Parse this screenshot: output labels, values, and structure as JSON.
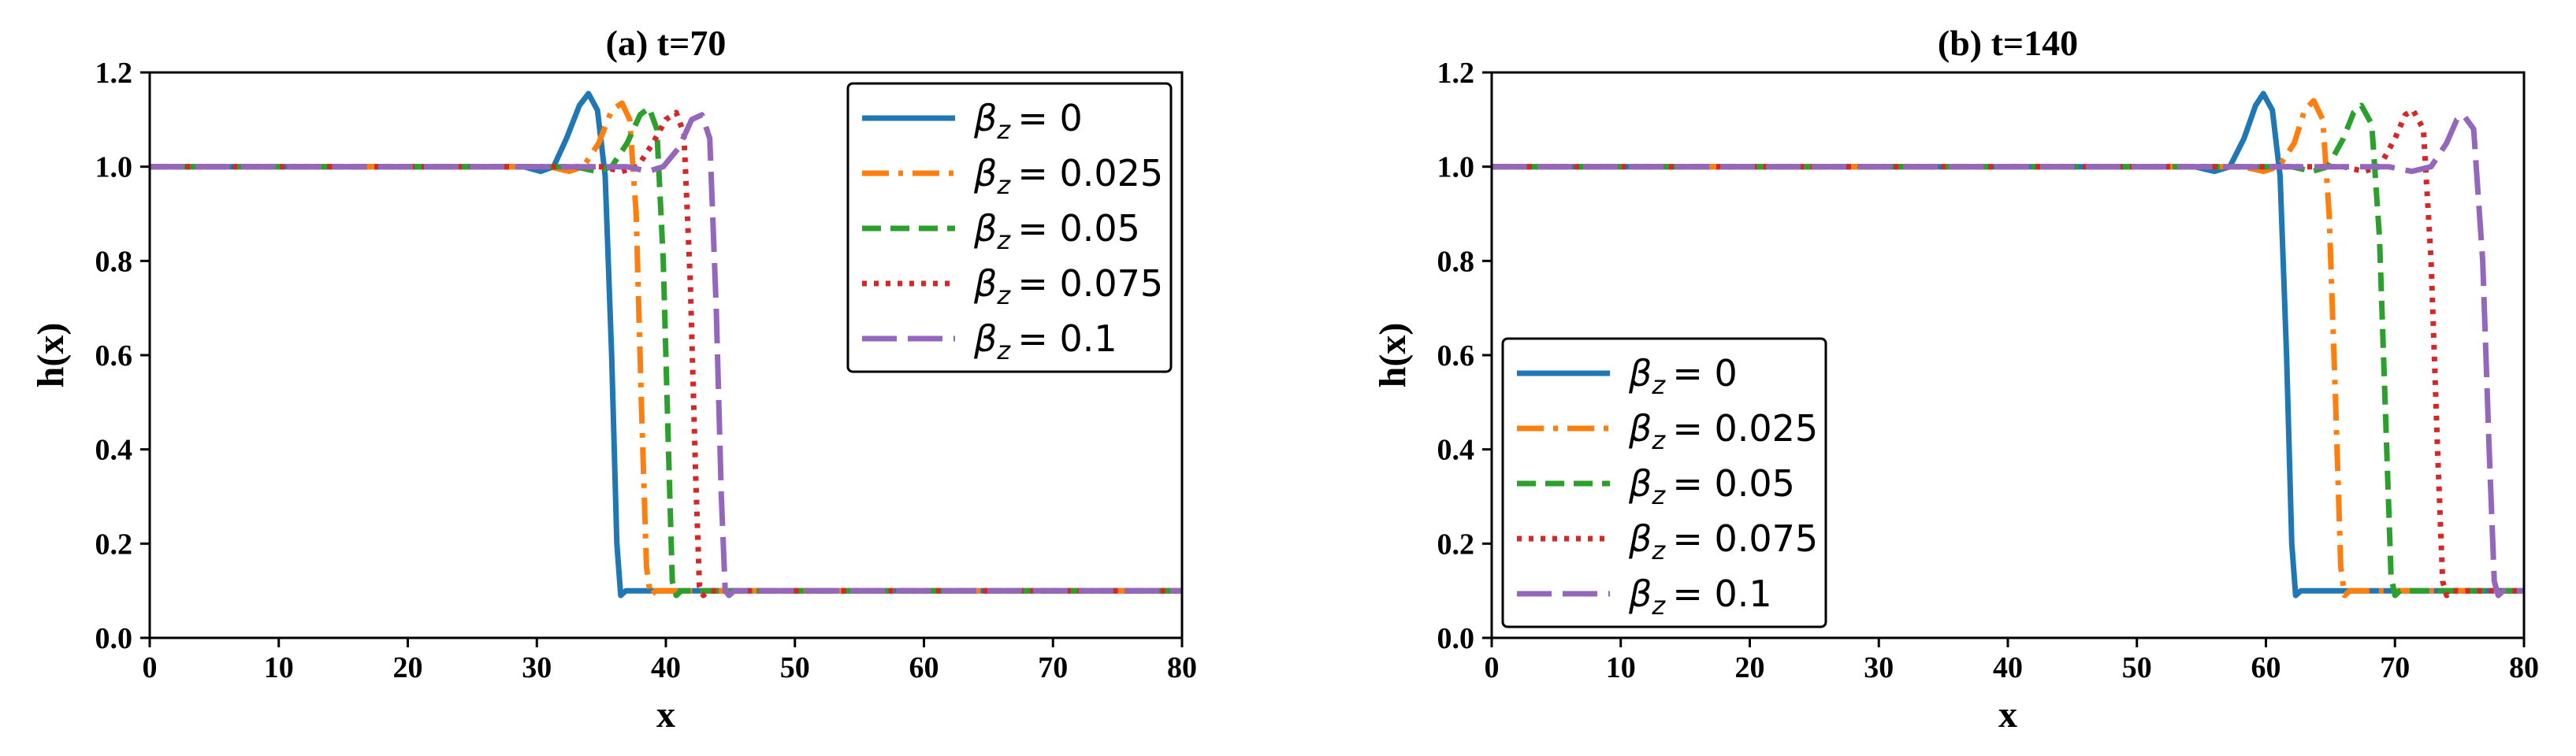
{
  "colors": {
    "blue": "#1f77b4",
    "orange": "#ff7f0e",
    "green": "#2ca02c",
    "red": "#d62728",
    "purple": "#9467bd"
  },
  "chart_data": [
    {
      "type": "line",
      "title": "(a) t=70",
      "xlabel": "x",
      "ylabel": "h(x)",
      "xlim": [
        0,
        80
      ],
      "ylim": [
        0.0,
        1.2
      ],
      "xticks": [
        "0",
        "10",
        "20",
        "30",
        "40",
        "50",
        "60",
        "70",
        "80"
      ],
      "yticks": [
        "0.0",
        "0.2",
        "0.4",
        "0.6",
        "0.8",
        "1.0",
        "1.2"
      ],
      "grid": false,
      "legend_position": "top-right",
      "series": [
        {
          "name": "β_z = 0",
          "legend_symbol": "β",
          "legend_sub": "z",
          "legend_value": "= 0",
          "color": "blue",
          "dash": "solid",
          "points": [
            [
              0,
              1.0
            ],
            [
              29.0,
              1.0
            ],
            [
              30.3,
              0.99
            ],
            [
              31.3,
              1.0
            ],
            [
              32.3,
              1.06
            ],
            [
              33.3,
              1.13
            ],
            [
              34.0,
              1.155
            ],
            [
              34.7,
              1.12
            ],
            [
              35.3,
              0.98
            ],
            [
              35.8,
              0.6
            ],
            [
              36.2,
              0.2
            ],
            [
              36.5,
              0.09
            ],
            [
              36.9,
              0.1
            ],
            [
              80,
              0.1
            ]
          ]
        },
        {
          "name": "β_z = 0.025",
          "legend_symbol": "β",
          "legend_sub": "z",
          "legend_value": "= 0.025",
          "color": "orange",
          "dash": "dashdot",
          "points": [
            [
              0,
              1.0
            ],
            [
              31.0,
              1.0
            ],
            [
              32.5,
              0.99
            ],
            [
              33.6,
              1.0
            ],
            [
              34.8,
              1.05
            ],
            [
              35.8,
              1.12
            ],
            [
              36.6,
              1.135
            ],
            [
              37.2,
              1.1
            ],
            [
              37.7,
              0.9
            ],
            [
              38.1,
              0.5
            ],
            [
              38.5,
              0.15
            ],
            [
              38.8,
              0.09
            ],
            [
              39.2,
              0.1
            ],
            [
              80,
              0.1
            ]
          ]
        },
        {
          "name": "β_z = 0.05",
          "legend_symbol": "β",
          "legend_sub": "z",
          "legend_value": "= 0.05",
          "color": "green",
          "dash": "dashed",
          "points": [
            [
              0,
              1.0
            ],
            [
              33.0,
              1.0
            ],
            [
              34.6,
              0.99
            ],
            [
              35.8,
              1.0
            ],
            [
              37.0,
              1.05
            ],
            [
              38.0,
              1.11
            ],
            [
              38.7,
              1.125
            ],
            [
              39.3,
              1.08
            ],
            [
              39.8,
              0.8
            ],
            [
              40.2,
              0.4
            ],
            [
              40.5,
              0.12
            ],
            [
              40.8,
              0.09
            ],
            [
              41.2,
              0.1
            ],
            [
              80,
              0.1
            ]
          ]
        },
        {
          "name": "β_z = 0.075",
          "legend_symbol": "β",
          "legend_sub": "z",
          "legend_value": "= 0.075",
          "color": "red",
          "dash": "dotted",
          "points": [
            [
              0,
              1.0
            ],
            [
              35.0,
              1.0
            ],
            [
              36.6,
              0.99
            ],
            [
              37.8,
              1.0
            ],
            [
              39.0,
              1.05
            ],
            [
              40.0,
              1.1
            ],
            [
              40.8,
              1.115
            ],
            [
              41.4,
              1.07
            ],
            [
              41.9,
              0.75
            ],
            [
              42.3,
              0.35
            ],
            [
              42.6,
              0.11
            ],
            [
              42.9,
              0.09
            ],
            [
              43.3,
              0.1
            ],
            [
              80,
              0.1
            ]
          ]
        },
        {
          "name": "β_z = 0.1",
          "legend_symbol": "β",
          "legend_sub": "z",
          "legend_value": "= 0.1",
          "color": "purple",
          "dash": "longdash",
          "points": [
            [
              0,
              1.0
            ],
            [
              37.0,
              1.0
            ],
            [
              38.6,
              0.99
            ],
            [
              39.8,
              1.0
            ],
            [
              41.0,
              1.04
            ],
            [
              42.0,
              1.1
            ],
            [
              42.8,
              1.11
            ],
            [
              43.4,
              1.06
            ],
            [
              43.9,
              0.7
            ],
            [
              44.3,
              0.3
            ],
            [
              44.6,
              0.1
            ],
            [
              44.9,
              0.09
            ],
            [
              45.3,
              0.1
            ],
            [
              80,
              0.1
            ]
          ]
        }
      ]
    },
    {
      "type": "line",
      "title": "(b) t=140",
      "xlabel": "x",
      "ylabel": "h(x)",
      "xlim": [
        0,
        80
      ],
      "ylim": [
        0.0,
        1.2
      ],
      "xticks": [
        "0",
        "10",
        "20",
        "30",
        "40",
        "50",
        "60",
        "70",
        "80"
      ],
      "yticks": [
        "0.0",
        "0.2",
        "0.4",
        "0.6",
        "0.8",
        "1.0",
        "1.2"
      ],
      "grid": false,
      "legend_position": "bottom-left",
      "series": [
        {
          "name": "β_z = 0",
          "legend_symbol": "β",
          "legend_sub": "z",
          "legend_value": "= 0",
          "color": "blue",
          "dash": "solid",
          "points": [
            [
              0,
              1.0
            ],
            [
              54.5,
              1.0
            ],
            [
              56.0,
              0.99
            ],
            [
              57.2,
              1.0
            ],
            [
              58.3,
              1.06
            ],
            [
              59.2,
              1.13
            ],
            [
              59.8,
              1.155
            ],
            [
              60.5,
              1.12
            ],
            [
              61.1,
              0.98
            ],
            [
              61.6,
              0.6
            ],
            [
              62.0,
              0.2
            ],
            [
              62.3,
              0.09
            ],
            [
              62.7,
              0.1
            ],
            [
              80,
              0.1
            ]
          ]
        },
        {
          "name": "β_z = 0.025",
          "legend_symbol": "β",
          "legend_sub": "z",
          "legend_value": "= 0.025",
          "color": "orange",
          "dash": "dashdot",
          "points": [
            [
              0,
              1.0
            ],
            [
              58.2,
              1.0
            ],
            [
              59.8,
              0.99
            ],
            [
              61.0,
              1.0
            ],
            [
              62.2,
              1.05
            ],
            [
              63.0,
              1.12
            ],
            [
              63.7,
              1.14
            ],
            [
              64.4,
              1.1
            ],
            [
              64.9,
              0.9
            ],
            [
              65.4,
              0.5
            ],
            [
              65.8,
              0.15
            ],
            [
              66.1,
              0.09
            ],
            [
              66.5,
              0.1
            ],
            [
              80,
              0.1
            ]
          ]
        },
        {
          "name": "β_z = 0.05",
          "legend_symbol": "β",
          "legend_sub": "z",
          "legend_value": "= 0.05",
          "color": "green",
          "dash": "dashed",
          "points": [
            [
              0,
              1.0
            ],
            [
              62.0,
              1.0
            ],
            [
              63.6,
              0.99
            ],
            [
              64.8,
              1.0
            ],
            [
              66.0,
              1.06
            ],
            [
              66.8,
              1.115
            ],
            [
              67.4,
              1.13
            ],
            [
              68.2,
              1.09
            ],
            [
              68.8,
              0.85
            ],
            [
              69.3,
              0.45
            ],
            [
              69.7,
              0.13
            ],
            [
              70.0,
              0.09
            ],
            [
              70.4,
              0.1
            ],
            [
              80,
              0.1
            ]
          ]
        },
        {
          "name": "β_z = 0.075",
          "legend_symbol": "β",
          "legend_sub": "z",
          "legend_value": "= 0.075",
          "color": "red",
          "dash": "dotted",
          "points": [
            [
              0,
              1.0
            ],
            [
              66.0,
              1.0
            ],
            [
              67.6,
              0.99
            ],
            [
              68.8,
              1.0
            ],
            [
              70.0,
              1.06
            ],
            [
              70.8,
              1.11
            ],
            [
              71.4,
              1.12
            ],
            [
              72.2,
              1.08
            ],
            [
              72.8,
              0.8
            ],
            [
              73.3,
              0.4
            ],
            [
              73.7,
              0.12
            ],
            [
              74.0,
              0.09
            ],
            [
              74.4,
              0.1
            ],
            [
              80,
              0.1
            ]
          ]
        },
        {
          "name": "β_z = 0.1",
          "legend_symbol": "β",
          "legend_sub": "z",
          "legend_value": "= 0.1",
          "color": "purple",
          "dash": "longdash",
          "points": [
            [
              0,
              1.0
            ],
            [
              69.5,
              1.0
            ],
            [
              71.3,
              0.99
            ],
            [
              72.8,
              1.0
            ],
            [
              74.0,
              1.05
            ],
            [
              74.8,
              1.1
            ],
            [
              75.3,
              1.11
            ],
            [
              76.1,
              1.08
            ],
            [
              76.8,
              0.8
            ],
            [
              77.3,
              0.4
            ],
            [
              77.7,
              0.12
            ],
            [
              78.0,
              0.09
            ],
            [
              78.4,
              0.1
            ],
            [
              80,
              0.1
            ]
          ]
        }
      ]
    }
  ]
}
